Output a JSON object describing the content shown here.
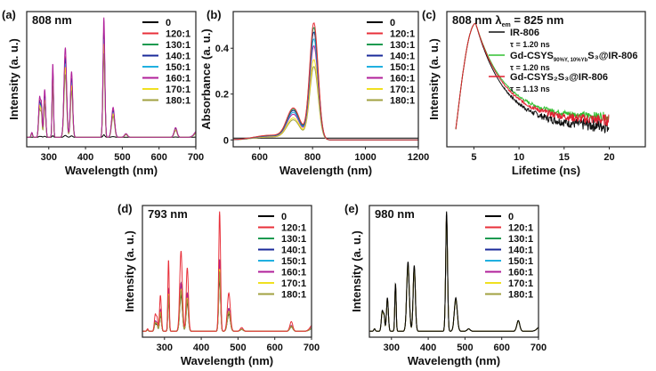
{
  "colors": {
    "0": "#000000",
    "120:1": "#e8303a",
    "130:1": "#1a9a50",
    "140:1": "#1a2a9a",
    "150:1": "#20b0e0",
    "160:1": "#b0209a",
    "170:1": "#f0e020",
    "180:1": "#a0a040"
  },
  "chart_data": [
    {
      "id": "a",
      "panel_label": "(a)",
      "type": "line",
      "annotation": "808 nm",
      "xlabel": "Wavelength (nm)",
      "ylabel": "Intensity (a. u.)",
      "xlim": [
        240,
        700
      ],
      "ylim": [
        -0.08,
        1.05
      ],
      "xticks": [
        300,
        400,
        500,
        600,
        700
      ],
      "yticks": [],
      "peaks": [
        [
          254,
          0.04,
          2
        ],
        [
          275,
          0.33,
          2.5
        ],
        [
          280,
          0.25,
          2
        ],
        [
          289,
          0.4,
          2.5
        ],
        [
          311,
          0.62,
          1.8
        ],
        [
          345,
          0.75,
          3.5
        ],
        [
          362,
          0.55,
          3
        ],
        [
          450,
          1.0,
          2.5
        ],
        [
          475,
          0.25,
          4
        ],
        [
          510,
          0.03,
          4
        ],
        [
          645,
          0.08,
          4
        ],
        [
          705,
          0.06,
          8
        ]
      ],
      "series": [
        {
          "name": "0",
          "scale": 0.02
        },
        {
          "name": "120:1",
          "scale": 0.9
        },
        {
          "name": "130:1",
          "scale": 0.86
        },
        {
          "name": "140:1",
          "scale": 0.88
        },
        {
          "name": "150:1",
          "scale": 0.82
        },
        {
          "name": "170:1",
          "scale": 0.78
        },
        {
          "name": "180:1",
          "scale": 0.7
        },
        {
          "name": "160:1",
          "scale": 1.0
        }
      ],
      "legend": [
        "0",
        "120:1",
        "130:1",
        "140:1",
        "150:1",
        "160:1",
        "170:1",
        "180:1"
      ],
      "legend_position": "top-right"
    },
    {
      "id": "b",
      "panel_label": "(b)",
      "type": "line",
      "xlabel": "Wavelength (nm)",
      "ylabel": "Absorbance (a. u.)",
      "xlim": [
        500,
        1200
      ],
      "ylim": [
        -0.03,
        0.56
      ],
      "xticks": [
        600,
        800,
        1000,
        1200
      ],
      "yticks": [
        0,
        0.2,
        0.4
      ],
      "series": [
        {
          "name": "0",
          "peak": 0.01
        },
        {
          "name": "180:1",
          "peak": 0.32
        },
        {
          "name": "170:1",
          "peak": 0.35
        },
        {
          "name": "160:1",
          "peak": 0.41
        },
        {
          "name": "150:1",
          "peak": 0.44
        },
        {
          "name": "140:1",
          "peak": 0.47
        },
        {
          "name": "130:1",
          "peak": 0.49
        },
        {
          "name": "120:1",
          "peak": 0.51
        }
      ],
      "legend": [
        "0",
        "120:1",
        "130:1",
        "140:1",
        "150:1",
        "160:1",
        "170:1",
        "180:1"
      ],
      "legend_position": "top-right"
    },
    {
      "id": "c",
      "panel_label": "(c)",
      "type": "line",
      "annotation": "808 nm λ",
      "annotation_sub": "em",
      "annotation_tail": " = 825 nm",
      "xlabel": "Lifetime (ns)",
      "ylabel": "Intensity (a. u.)",
      "xlim": [
        2,
        24
      ],
      "ylim": [
        -0.05,
        1.1
      ],
      "xticks": [
        5,
        10,
        15,
        20
      ],
      "yticks": [],
      "series": [
        {
          "name": "IR-806",
          "color": "#111111",
          "tau": "τ = 1.20 ns",
          "noise": 0.05,
          "tail": 0.12
        },
        {
          "name": "Gd-CSYS90%Y, 10%YbS3@IR-806",
          "color": "#30c030",
          "tau": "τ = 1.20 ns",
          "noise": 0.03,
          "tail": 0.2
        },
        {
          "name": "Gd-CSYS2S3@IR-806",
          "color": "#e02030",
          "tau": "τ = 1.13 ns",
          "noise": 0.04,
          "tail": 0.17
        }
      ],
      "legend_labels": {
        "l1": "IR-806",
        "l2a": "Gd-CSYS",
        "l2sub": "90%Y, 10%Yb",
        "l2b": "S₃@IR-806",
        "l3": "Gd-CSYS₂S₃@IR-806"
      },
      "legend_position": "top-right"
    },
    {
      "id": "d",
      "panel_label": "(d)",
      "type": "line",
      "annotation": "793 nm",
      "xlabel": "Wavelength (nm)",
      "ylabel": "Intensity (a. u.)",
      "xlim": [
        240,
        700
      ],
      "ylim": [
        -0.05,
        1.05
      ],
      "xticks": [
        300,
        400,
        500,
        600,
        700
      ],
      "yticks": [],
      "peaks": [
        [
          254,
          0.02,
          2
        ],
        [
          275,
          0.14,
          2.5
        ],
        [
          280,
          0.1,
          2
        ],
        [
          289,
          0.3,
          2.5
        ],
        [
          311,
          0.6,
          1.8
        ],
        [
          345,
          0.67,
          3.5
        ],
        [
          362,
          0.53,
          3
        ],
        [
          450,
          1.0,
          2.5
        ],
        [
          475,
          0.32,
          4
        ],
        [
          510,
          0.03,
          4
        ],
        [
          645,
          0.08,
          4
        ],
        [
          705,
          0.06,
          8
        ]
      ],
      "series": [
        {
          "name": "0",
          "scale": 0.45
        },
        {
          "name": "130:1",
          "scale": 0.6
        },
        {
          "name": "140:1",
          "scale": 0.58
        },
        {
          "name": "150:1",
          "scale": 0.55
        },
        {
          "name": "160:1",
          "scale": 0.6
        },
        {
          "name": "170:1",
          "scale": 0.52
        },
        {
          "name": "180:1",
          "scale": 0.5
        },
        {
          "name": "120:1",
          "scale": 1.0
        }
      ],
      "legend": [
        "0",
        "120:1",
        "130:1",
        "140:1",
        "150:1",
        "160:1",
        "170:1",
        "180:1"
      ],
      "legend_position": "top-right"
    },
    {
      "id": "e",
      "panel_label": "(e)",
      "type": "line",
      "annotation": "980 nm",
      "xlabel": "Wavelength (nm)",
      "ylabel": "Intensity (a. u.)",
      "xlim": [
        240,
        700
      ],
      "ylim": [
        -0.05,
        1.05
      ],
      "xticks": [
        300,
        400,
        500,
        600,
        700
      ],
      "yticks": [],
      "peaks": [
        [
          254,
          0.02,
          2
        ],
        [
          275,
          0.17,
          2.5
        ],
        [
          280,
          0.12,
          2
        ],
        [
          289,
          0.28,
          2.5
        ],
        [
          311,
          0.4,
          1.8
        ],
        [
          345,
          0.58,
          3.5
        ],
        [
          362,
          0.55,
          3
        ],
        [
          450,
          1.0,
          2.5
        ],
        [
          475,
          0.28,
          4
        ],
        [
          510,
          0.02,
          4
        ],
        [
          645,
          0.09,
          4
        ],
        [
          705,
          0.04,
          8
        ]
      ],
      "series": [
        {
          "name": "120:1",
          "scale": 0.95
        },
        {
          "name": "130:1",
          "scale": 0.94
        },
        {
          "name": "140:1",
          "scale": 0.93
        },
        {
          "name": "150:1",
          "scale": 0.94
        },
        {
          "name": "160:1",
          "scale": 0.95
        },
        {
          "name": "170:1",
          "scale": 0.97
        },
        {
          "name": "180:1",
          "scale": 0.92
        },
        {
          "name": "0",
          "scale": 1.0
        }
      ],
      "legend": [
        "0",
        "120:1",
        "130:1",
        "140:1",
        "150:1",
        "160:1",
        "170:1",
        "180:1"
      ],
      "legend_position": "top-right"
    }
  ]
}
